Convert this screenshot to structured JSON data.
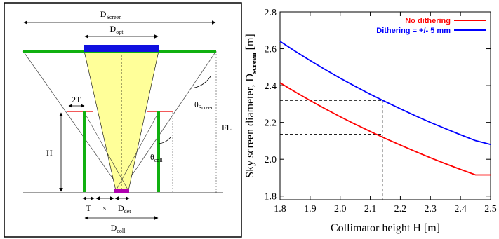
{
  "diagram": {
    "labels": {
      "d_screen_main": "D",
      "d_screen_sub": "Screen",
      "d_opt_main": "D",
      "d_opt_sub": "opt",
      "two_t": "2T",
      "theta_screen_main": "θ",
      "theta_screen_sub": "Screen",
      "fl": "FL",
      "h": "H",
      "theta_coll_main": "θ",
      "theta_coll_sub": "coll",
      "t": "T",
      "s": "s",
      "d_det_main": "D",
      "d_det_sub": "det",
      "d_coll_main": "D",
      "d_coll_sub": "coll"
    },
    "colors": {
      "screen": "#10b010",
      "collimator": "#10b010",
      "optics": "#1010e0",
      "beam": "#ffff99",
      "detector": "#b000b0",
      "baffle": "#ee2222"
    }
  },
  "chart_data": {
    "type": "line",
    "x": [
      1.8,
      1.85,
      1.9,
      1.95,
      2.0,
      2.05,
      2.1,
      2.15,
      2.2,
      2.25,
      2.3,
      2.35,
      2.4,
      2.45,
      2.5
    ],
    "series": [
      {
        "name": "No dithering",
        "color": "#ff0000",
        "values": [
          2.415,
          2.366,
          2.319,
          2.274,
          2.231,
          2.19,
          2.151,
          2.113,
          2.077,
          2.042,
          2.008,
          1.976,
          1.945,
          1.915,
          1.915
        ]
      },
      {
        "name": "Dithering = +/- 5 mm",
        "color": "#0000ff",
        "values": [
          2.64,
          2.587,
          2.536,
          2.487,
          2.44,
          2.396,
          2.353,
          2.313,
          2.274,
          2.236,
          2.2,
          2.166,
          2.133,
          2.101,
          2.08
        ]
      }
    ],
    "xlabel": "Collimator height H [m]",
    "ylabel_main": "Sky screen diameter, D",
    "ylabel_sub": "screen",
    "ylabel_unit": " [m]",
    "xlim": [
      1.8,
      2.5
    ],
    "ylim": [
      1.78,
      2.8
    ],
    "xticks": [
      "1.8",
      "1.9",
      "2.0",
      "2.1",
      "2.2",
      "2.3",
      "2.4",
      "2.5"
    ],
    "yticks": [
      "1.8",
      "2.0",
      "2.2",
      "2.4",
      "2.6",
      "2.8"
    ],
    "reference": {
      "x": 2.14,
      "y_red": 2.135,
      "y_blue": 2.32
    },
    "grid": false,
    "legend": "top-right"
  }
}
